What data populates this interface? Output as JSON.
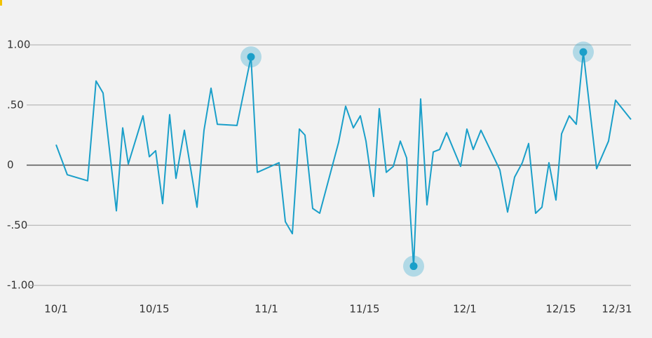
{
  "chart_data": {
    "type": "line",
    "x": [
      0,
      1.6,
      4.5,
      5.7,
      6.7,
      8.6,
      9.5,
      10.3,
      12.4,
      13.3,
      14.2,
      15.2,
      16.2,
      17.1,
      18.3,
      20.1,
      21.1,
      22.1,
      23,
      25.8,
      27.8,
      28.7,
      31.8,
      32.7,
      33.7,
      34.7,
      35.5,
      36.6,
      37.6,
      40.3,
      41.3,
      42.4,
      43.4,
      44.2,
      45.3,
      46.1,
      47.1,
      48.1,
      49.1,
      50,
      51,
      52,
      52.9,
      53.8,
      54.7,
      55.7,
      57.7,
      58.6,
      59.5,
      60.6,
      63.3,
      64.4,
      65.4,
      66.5,
      67.4,
      68.4,
      69.3,
      70.3,
      71.3,
      72.1,
      73.2,
      74.2,
      75.2,
      77.1,
      78.8,
      79.8,
      82
    ],
    "series": [
      {
        "color": "#1a9fc9",
        "values": [
          0.17,
          -0.08,
          -0.13,
          0.7,
          0.6,
          -0.38,
          0.31,
          0.01,
          0.41,
          0.07,
          0.12,
          -0.32,
          0.42,
          -0.11,
          0.29,
          -0.35,
          0.29,
          0.64,
          0.34,
          0.33,
          0.9,
          -0.06,
          0.02,
          -0.47,
          -0.57,
          0.3,
          0.25,
          -0.36,
          -0.4,
          0.19,
          0.49,
          0.31,
          0.41,
          0.2,
          -0.26,
          0.47,
          -0.06,
          -0.01,
          0.2,
          0.06,
          -0.84,
          0.55,
          -0.33,
          0.11,
          0.13,
          0.27,
          -0.01,
          0.3,
          0.13,
          0.29,
          -0.04,
          -0.39,
          -0.1,
          0.02,
          0.18,
          -0.4,
          -0.35,
          0.02,
          -0.29,
          0.26,
          0.41,
          0.34,
          0.94,
          -0.03,
          0.2,
          0.54,
          0.38
        ]
      }
    ],
    "highlights": [
      20,
      40,
      62
    ],
    "xlim": [
      0,
      82
    ],
    "xticks": [
      {
        "value": 0,
        "label": "10/1"
      },
      {
        "value": 14,
        "label": "10/15"
      },
      {
        "value": 30,
        "label": "11/1"
      },
      {
        "value": 44,
        "label": "11/15"
      },
      {
        "value": 58.3,
        "label": "12/1"
      },
      {
        "value": 72,
        "label": "12/15"
      },
      {
        "value": 80,
        "label": "12/31"
      }
    ],
    "ylim": [
      -1,
      1
    ],
    "yticks": [
      {
        "value": 1,
        "label": "1.00"
      },
      {
        "value": 0.5,
        "label": ".50"
      },
      0,
      {
        "value": -0.5,
        "label": "-.50"
      },
      {
        "value": -1,
        "label": "-1.00"
      }
    ],
    "grid": true
  }
}
